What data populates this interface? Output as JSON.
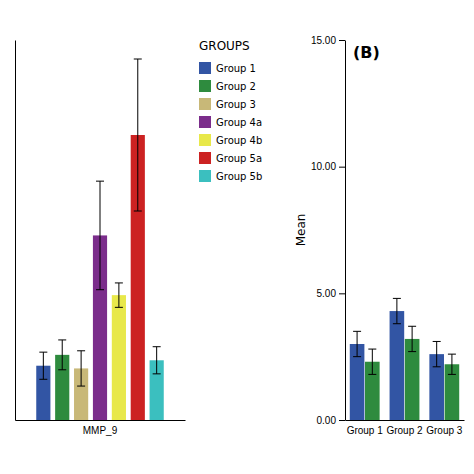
{
  "chart_data": [
    {
      "type": "bar",
      "categories": [
        "MMP_9"
      ],
      "series": [
        {
          "name": "Group 1",
          "color": "#3255A4",
          "values": [
            2.0
          ],
          "errors": [
            0.5
          ]
        },
        {
          "name": "Group 2",
          "color": "#2E8B3E",
          "values": [
            2.4
          ],
          "errors": [
            0.55
          ]
        },
        {
          "name": "Group 3",
          "color": "#C8B878",
          "values": [
            1.9
          ],
          "errors": [
            0.65
          ]
        },
        {
          "name": "Group 4a",
          "color": "#7B2D8B",
          "values": [
            6.8
          ],
          "errors": [
            2.0
          ]
        },
        {
          "name": "Group 4b",
          "color": "#E8E84A",
          "values": [
            4.6
          ],
          "errors": [
            0.45
          ]
        },
        {
          "name": "Group 5a",
          "color": "#CC2222",
          "values": [
            10.5
          ],
          "errors": [
            2.8
          ]
        },
        {
          "name": "Group 5b",
          "color": "#3BBFBF",
          "values": [
            2.2
          ],
          "errors": [
            0.5
          ]
        }
      ],
      "ylim": [
        0,
        14
      ],
      "tick_labels": "x",
      "legend": "right",
      "legend_title": "GROUPS"
    },
    {
      "type": "bar",
      "title": "(B)",
      "ylabel": "Mean",
      "categories": [
        "Group 1",
        "Group 2",
        "Group 3"
      ],
      "series": [
        {
          "color": "#3255A4",
          "values": [
            3.0,
            4.3,
            2.6
          ],
          "errors": [
            0.5,
            0.5,
            0.5
          ]
        },
        {
          "color": "#2E8B3E",
          "values": [
            2.3,
            3.2,
            2.2
          ],
          "errors": [
            0.5,
            0.5,
            0.4
          ]
        }
      ],
      "ylim": [
        0,
        15
      ],
      "yticks": [
        {
          "value": 0,
          "label": "0.00"
        },
        {
          "value": 5,
          "label": "5.00"
        },
        {
          "value": 10,
          "label": "10.00"
        },
        {
          "value": 15,
          "label": "15.00"
        }
      ]
    }
  ]
}
